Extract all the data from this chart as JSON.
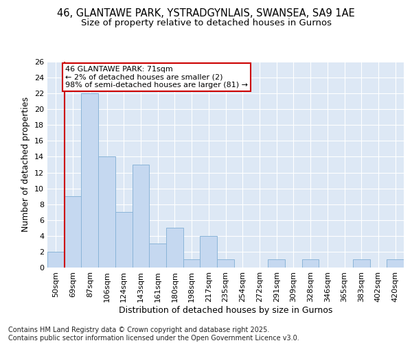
{
  "title1": "46, GLANTAWE PARK, YSTRADGYNLAIS, SWANSEA, SA9 1AE",
  "title2": "Size of property relative to detached houses in Gurnos",
  "xlabel": "Distribution of detached houses by size in Gurnos",
  "ylabel": "Number of detached properties",
  "categories": [
    "50sqm",
    "69sqm",
    "87sqm",
    "106sqm",
    "124sqm",
    "143sqm",
    "161sqm",
    "180sqm",
    "198sqm",
    "217sqm",
    "235sqm",
    "254sqm",
    "272sqm",
    "291sqm",
    "309sqm",
    "328sqm",
    "346sqm",
    "365sqm",
    "383sqm",
    "402sqm",
    "420sqm"
  ],
  "values": [
    2,
    9,
    22,
    14,
    7,
    13,
    3,
    5,
    1,
    4,
    1,
    0,
    0,
    1,
    0,
    1,
    0,
    0,
    1,
    0,
    1
  ],
  "bar_color": "#c5d8f0",
  "bar_edge_color": "#8ab4d8",
  "background_color": "#dde8f5",
  "red_line_index": 1,
  "annotation_line1": "46 GLANTAWE PARK: 71sqm",
  "annotation_line2": "← 2% of detached houses are smaller (2)",
  "annotation_line3": "98% of semi-detached houses are larger (81) →",
  "annotation_box_color": "#ffffff",
  "annotation_box_edge_color": "#cc0000",
  "ylim": [
    0,
    26
  ],
  "yticks": [
    0,
    2,
    4,
    6,
    8,
    10,
    12,
    14,
    16,
    18,
    20,
    22,
    24,
    26
  ],
  "footer_line1": "Contains HM Land Registry data © Crown copyright and database right 2025.",
  "footer_line2": "Contains public sector information licensed under the Open Government Licence v3.0.",
  "title1_fontsize": 10.5,
  "title2_fontsize": 9.5,
  "xlabel_fontsize": 9,
  "ylabel_fontsize": 9,
  "tick_fontsize": 8,
  "annotation_fontsize": 8,
  "footer_fontsize": 7
}
